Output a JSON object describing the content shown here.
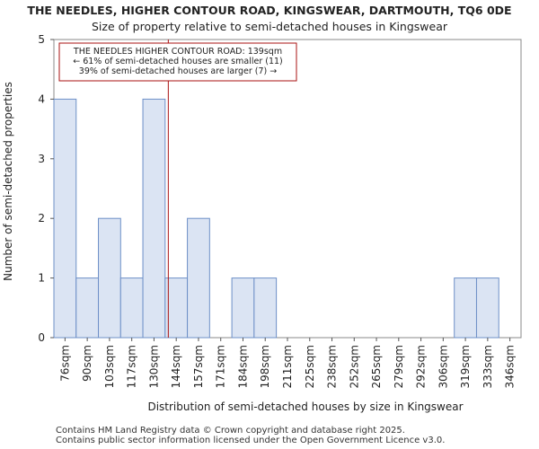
{
  "chart_data": {
    "type": "bar",
    "title": "THE NEEDLES, HIGHER CONTOUR ROAD, KINGSWEAR, DARTMOUTH, TQ6 0DE",
    "subtitle": "Size of property relative to semi-detached houses in Kingswear",
    "xlabel": "Distribution of semi-detached houses by size in Kingswear",
    "ylabel": "Number of semi-detached properties",
    "categories": [
      "76sqm",
      "90sqm",
      "103sqm",
      "117sqm",
      "130sqm",
      "144sqm",
      "157sqm",
      "171sqm",
      "184sqm",
      "198sqm",
      "211sqm",
      "225sqm",
      "238sqm",
      "252sqm",
      "265sqm",
      "279sqm",
      "292sqm",
      "306sqm",
      "319sqm",
      "333sqm",
      "346sqm"
    ],
    "values": [
      4,
      1,
      2,
      1,
      4,
      1,
      2,
      0,
      1,
      1,
      0,
      0,
      0,
      0,
      0,
      0,
      0,
      0,
      1,
      1,
      0
    ],
    "ylim": [
      0,
      5
    ],
    "yticks": [
      0,
      1,
      2,
      3,
      4,
      5
    ],
    "bar_color": "#dbe4f3",
    "bar_edge": "#6d8fc7",
    "marker": {
      "value_sqm": 139,
      "color": "#aa1111",
      "lines": [
        "THE NEEDLES HIGHER CONTOUR ROAD: 139sqm",
        "← 61% of semi-detached houses are smaller (11)",
        "39% of semi-detached houses are larger (7) →"
      ]
    }
  },
  "footer": {
    "line1": "Contains HM Land Registry data © Crown copyright and database right 2025.",
    "line2": "Contains public sector information licensed under the Open Government Licence v3.0."
  }
}
